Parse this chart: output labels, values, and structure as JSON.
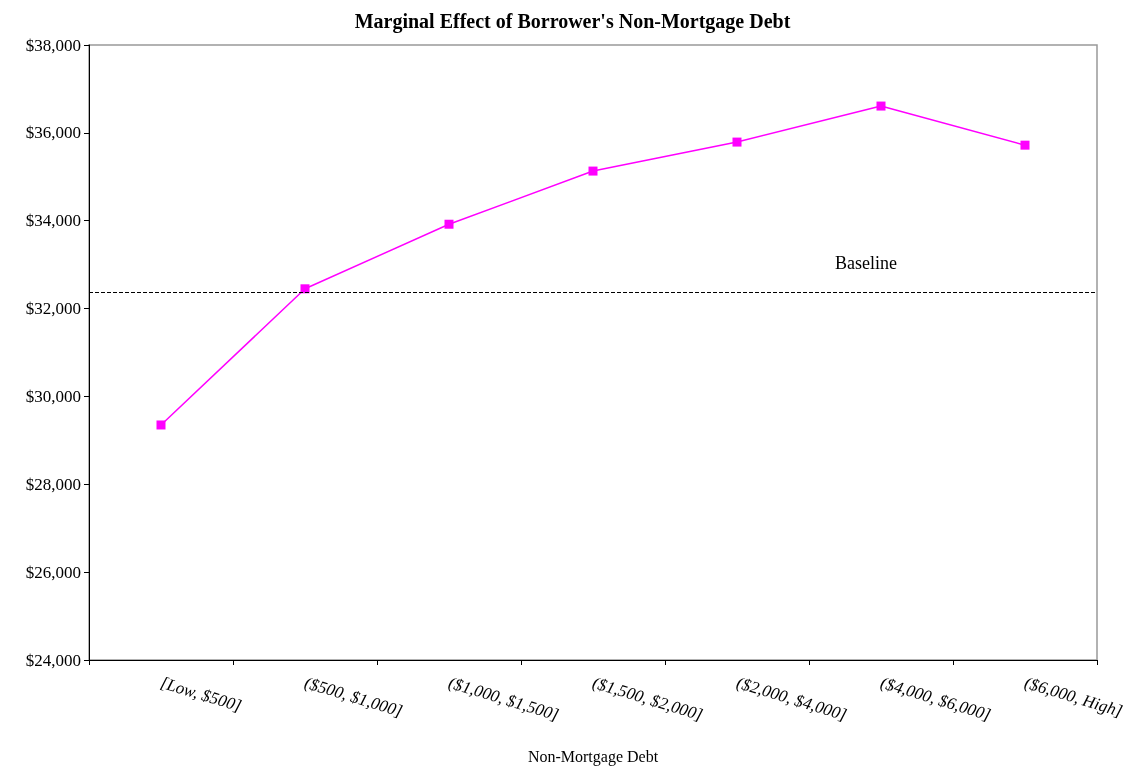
{
  "chart_data": {
    "type": "line",
    "title": "Marginal Effect of Borrower's Non-Mortgage Debt",
    "xlabel": "Non-Mortgage Debt",
    "categories": [
      "[Low, $500]",
      "($500, $1,000]",
      "($1,000, $1,500]",
      "($1,500, $2,000]",
      "($2,000, $4,000]",
      "($4,000, $6,000]",
      "($6,000, High]"
    ],
    "series": [
      {
        "color": "#ff00ff",
        "values": [
          29350,
          32450,
          33920,
          35130,
          35790,
          36610,
          35720
        ]
      }
    ],
    "ylim": [
      24000,
      38000
    ],
    "yticks": [
      {
        "value": 24000,
        "label": "$24,000"
      },
      {
        "value": 26000,
        "label": "$26,000"
      },
      {
        "value": 28000,
        "label": "$28,000"
      },
      {
        "value": 30000,
        "label": "$30,000"
      },
      {
        "value": 32000,
        "label": "$32,000"
      },
      {
        "value": 34000,
        "label": "$34,000"
      },
      {
        "value": 36000,
        "label": "$36,000"
      },
      {
        "value": 38000,
        "label": "$38,000"
      }
    ],
    "ref_lines": [
      {
        "axis": "y",
        "value": 32380,
        "label": "Baseline",
        "color": "#000000",
        "line_style": "dashed"
      }
    ],
    "grid": false,
    "marker": "square",
    "line_style": "solid"
  }
}
